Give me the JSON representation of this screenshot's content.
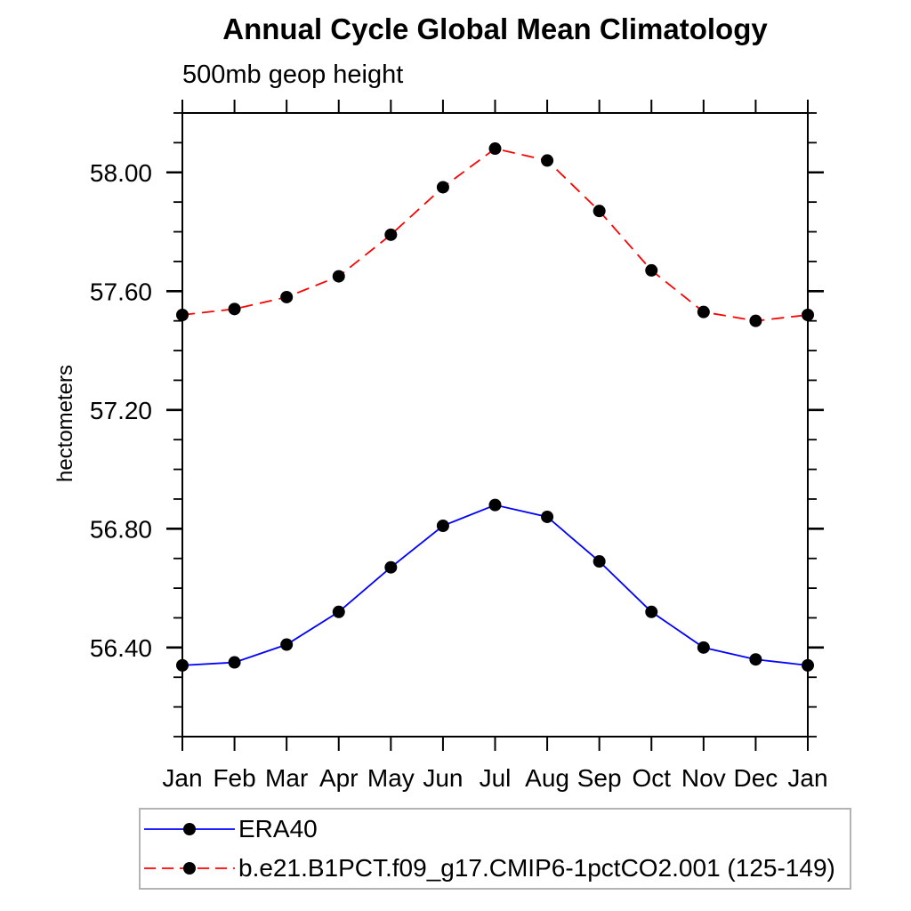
{
  "chart_data": {
    "type": "line",
    "title": "Annual Cycle Global Mean Climatology",
    "subtitle": "500mb geop height",
    "xlabel": "",
    "ylabel": "hectometers",
    "categories": [
      "Jan",
      "Feb",
      "Mar",
      "Apr",
      "May",
      "Jun",
      "Jul",
      "Aug",
      "Sep",
      "Oct",
      "Nov",
      "Dec",
      "Jan"
    ],
    "series": [
      {
        "name": "ERA40",
        "color": "#0000ff",
        "line_style": "solid",
        "marker": "filled-circle",
        "marker_color": "#000000",
        "values": [
          56.34,
          56.35,
          56.41,
          56.52,
          56.67,
          56.81,
          56.88,
          56.84,
          56.69,
          56.52,
          56.4,
          56.36,
          56.34
        ]
      },
      {
        "name": "b.e21.B1PCT.f09_g17.CMIP6-1pctCO2.001 (125-149)",
        "color": "#ff0000",
        "line_style": "dashed",
        "marker": "filled-circle",
        "marker_color": "#000000",
        "values": [
          57.52,
          57.54,
          57.58,
          57.65,
          57.79,
          57.95,
          58.08,
          58.04,
          57.87,
          57.67,
          57.53,
          57.5,
          57.52
        ]
      }
    ],
    "ylim": [
      56.1,
      58.2
    ],
    "yticks_major": [
      56.4,
      56.8,
      57.2,
      57.6,
      58.0
    ],
    "ytick_labels": [
      "56.40",
      "56.80",
      "57.20",
      "57.60",
      "58.00"
    ],
    "ytick_minor_step": 0.1,
    "grid": false,
    "legend_position": "bottom-left-box"
  },
  "colors": {
    "axis": "#000000",
    "text": "#000000",
    "legend_border": "#b3b3b3"
  }
}
